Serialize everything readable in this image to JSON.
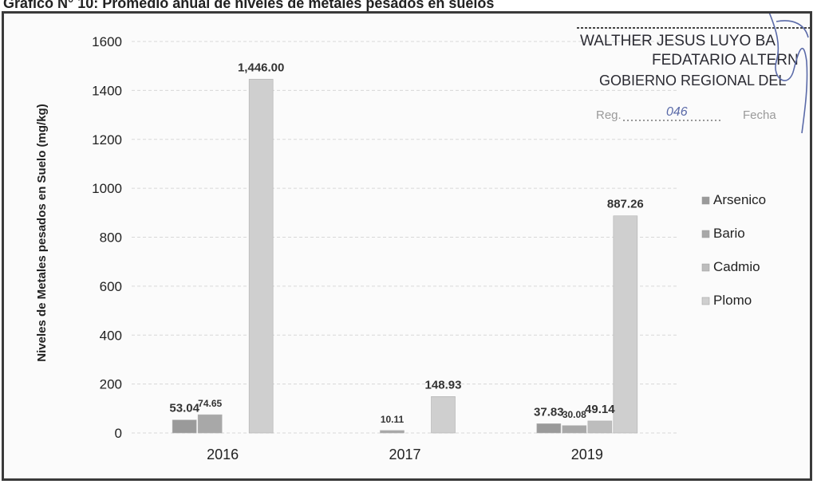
{
  "caption": "Gráfico N° 10: Promedio anual de niveles de metales pesados en suelos",
  "stamp": {
    "line1": "WALTHER JESUS LUYO BA",
    "line2": "FEDATARIO ALTERN",
    "line3": "GOBIERNO REGIONAL DEL",
    "reg_label": "Reg.",
    "reg_value": "046",
    "fecha_label": "Fecha"
  },
  "colors": {
    "arsenico": "#9a9a9a",
    "bario": "#a8a8a8",
    "cadmio": "#bdbdbd",
    "plomo": "#cfcfcf",
    "grid": "#d8d8d8",
    "axis_text": "#222222"
  },
  "chart_data": {
    "type": "bar",
    "title": "",
    "xlabel": "",
    "ylabel": "Niveles de Metales pesados en Suelo (mg/kg)",
    "ylim": [
      0,
      1600
    ],
    "yticks": [
      0,
      200,
      400,
      600,
      800,
      1000,
      1200,
      1400,
      1600
    ],
    "grid": true,
    "legend_position": "right",
    "categories": [
      "2016",
      "2017",
      "2019"
    ],
    "series": [
      {
        "name": "Arsenico",
        "values": [
          53.04,
          null,
          37.83
        ]
      },
      {
        "name": "Bario",
        "values": [
          74.65,
          10.11,
          30.08
        ]
      },
      {
        "name": "Cadmio",
        "values": [
          null,
          null,
          49.14
        ]
      },
      {
        "name": "Plomo",
        "values": [
          1446.0,
          148.93,
          887.26
        ]
      }
    ],
    "data_labels": [
      [
        "53.04",
        "",
        "37.83"
      ],
      [
        "74.65",
        "10.11",
        "30.08"
      ],
      [
        "",
        "",
        "49.14"
      ],
      [
        "1,446.00",
        "148.93",
        "887.26"
      ]
    ]
  }
}
